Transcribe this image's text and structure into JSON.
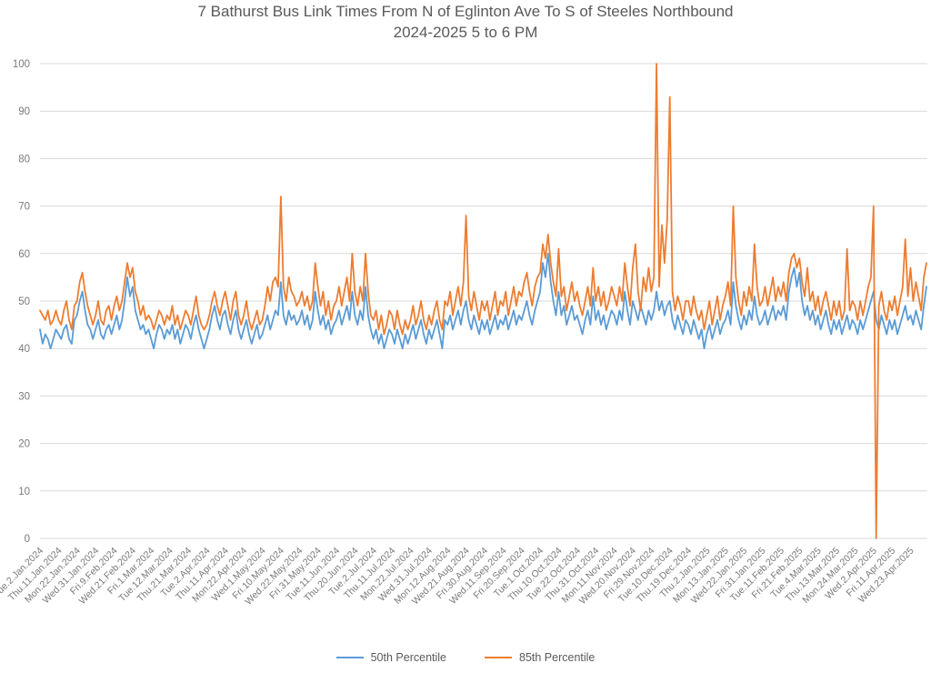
{
  "title": {
    "line1": "7 Bathurst Bus Link Times From N of Eglinton Ave To S of Steeles Northbound",
    "line2": "2024-2025 5 to 6 PM"
  },
  "chart_data": {
    "type": "line",
    "title": "7 Bathurst Bus Link Times From N of Eglinton Ave To S of Steeles Northbound 2024-2025 5 to 6 PM",
    "xlabel": "",
    "ylabel": "",
    "ylim": [
      0,
      100
    ],
    "y_ticks": [
      0,
      10,
      20,
      30,
      40,
      50,
      60,
      70,
      80,
      90,
      100
    ],
    "grid": "horizontal",
    "gridline_color": "#d9d9d9",
    "tick_label_color": "#7a7a7a",
    "legend_position": "bottom",
    "points_per_tick": 7,
    "x_tick_labels": [
      "Tue.2.Jan.2024",
      "Thu.11.Jan.2024",
      "Mon.22.Jan.2024",
      "Wed.31.Jan.2024",
      "Fri.9.Feb.2024",
      "Wed.21.Feb.2024",
      "Fri.1.Mar.2024",
      "Tue.12.Mar.2024",
      "Thu.21.Mar.2024",
      "Tue.2.Apr.2024",
      "Thu.11.Apr.2024",
      "Mon.22.Apr.2024",
      "Wed.1.May.2024",
      "Fri.10.May.2024",
      "Wed.22.May.2024",
      "Fri.31.May.2024",
      "Tue.11.Jun.2024",
      "Thu.20.Jun.2024",
      "Tue.2.Jul.2024",
      "Thu.11.Jul.2024",
      "Mon.22.Jul.2024",
      "Wed.31.Jul.2024",
      "Mon.12.Aug.2024",
      "Wed.21.Aug.2024",
      "Fri.30.Aug.2024",
      "Wed.11.Sep.2024",
      "Fri.20.Sep.2024",
      "Tue.1.Oct.2024",
      "Thu.10.Oct.2024",
      "Tue.22.Oct.2024",
      "Thu.31.Oct.2024",
      "Mon.11.Nov.2024",
      "Wed.20.Nov.2024",
      "Fri.29.Nov.2024",
      "Tue.10.Dec.2024",
      "Thu.19.Dec.2024",
      "Thu.2.Jan.2025",
      "Mon.13.Jan.2025",
      "Wed.22.Jan.2025",
      "Fri.31.Jan.2025",
      "Tue.11.Feb.2025",
      "Fri.21.Feb.2025",
      "Tue.4.Mar.2025",
      "Thu.13.Mar.2025",
      "Mon.24.Mar.2025",
      "Wed.2.Apr.2025",
      "Fri.11.Apr.2025",
      "Wed.23.Apr.2025"
    ],
    "series": [
      {
        "name": "50th Percentile",
        "color": "#5B9BD5",
        "values": [
          44,
          41,
          43,
          42,
          40,
          42,
          44,
          43,
          42,
          44,
          45,
          42,
          41,
          46,
          47,
          50,
          52,
          48,
          45,
          44,
          42,
          44,
          46,
          43,
          42,
          44,
          45,
          43,
          45,
          47,
          44,
          46,
          50,
          55,
          51,
          53,
          48,
          46,
          44,
          45,
          43,
          44,
          42,
          40,
          43,
          45,
          44,
          42,
          44,
          43,
          45,
          42,
          44,
          41,
          43,
          45,
          44,
          42,
          45,
          47,
          44,
          42,
          40,
          42,
          44,
          47,
          49,
          46,
          44,
          47,
          48,
          45,
          43,
          46,
          48,
          44,
          42,
          44,
          46,
          43,
          41,
          43,
          45,
          42,
          43,
          45,
          47,
          44,
          46,
          48,
          47,
          54,
          47,
          45,
          48,
          46,
          47,
          45,
          46,
          48,
          45,
          47,
          44,
          46,
          52,
          48,
          45,
          47,
          44,
          46,
          43,
          45,
          46,
          48,
          45,
          47,
          49,
          46,
          52,
          47,
          45,
          48,
          46,
          53,
          47,
          44,
          42,
          44,
          41,
          43,
          40,
          42,
          44,
          43,
          41,
          44,
          42,
          40,
          43,
          41,
          43,
          45,
          42,
          44,
          46,
          43,
          41,
          44,
          42,
          44,
          46,
          43,
          40,
          46,
          45,
          47,
          44,
          46,
          48,
          45,
          48,
          50,
          46,
          44,
          47,
          45,
          43,
          46,
          44,
          46,
          43,
          45,
          47,
          44,
          46,
          45,
          47,
          44,
          46,
          48,
          45,
          47,
          46,
          48,
          50,
          47,
          45,
          48,
          50,
          52,
          58,
          55,
          60,
          54,
          50,
          47,
          52,
          47,
          49,
          45,
          47,
          49,
          46,
          47,
          45,
          43,
          46,
          48,
          45,
          51,
          46,
          48,
          45,
          47,
          44,
          46,
          48,
          47,
          45,
          48,
          46,
          52,
          48,
          45,
          50,
          48,
          46,
          49,
          47,
          45,
          48,
          46,
          48,
          52,
          48,
          50,
          47,
          49,
          50,
          46,
          44,
          47,
          45,
          43,
          46,
          45,
          43,
          46,
          44,
          42,
          44,
          40,
          43,
          45,
          42,
          44,
          46,
          43,
          45,
          46,
          48,
          45,
          54,
          49,
          46,
          44,
          47,
          45,
          48,
          46,
          51,
          47,
          45,
          46,
          48,
          45,
          47,
          49,
          46,
          48,
          47,
          49,
          46,
          52,
          55,
          57,
          53,
          56,
          50,
          47,
          49,
          46,
          48,
          45,
          47,
          44,
          46,
          48,
          45,
          43,
          46,
          44,
          46,
          43,
          45,
          47,
          44,
          46,
          45,
          43,
          46,
          44,
          46,
          48,
          50,
          52,
          46,
          44,
          47,
          45,
          43,
          46,
          44,
          46,
          43,
          45,
          47,
          49,
          46,
          47,
          45,
          48,
          46,
          44,
          49,
          53
        ]
      },
      {
        "name": "85th Percentile",
        "color": "#ED7D31",
        "values": [
          48,
          47,
          46,
          48,
          45,
          46,
          48,
          46,
          45,
          48,
          50,
          46,
          44,
          49,
          50,
          54,
          56,
          52,
          49,
          47,
          45,
          47,
          50,
          46,
          45,
          48,
          49,
          46,
          49,
          51,
          48,
          50,
          54,
          58,
          55,
          57,
          52,
          50,
          47,
          49,
          46,
          47,
          46,
          44,
          46,
          48,
          47,
          45,
          47,
          46,
          49,
          45,
          47,
          44,
          46,
          48,
          47,
          45,
          48,
          51,
          47,
          45,
          44,
          45,
          47,
          50,
          52,
          49,
          47,
          50,
          52,
          49,
          46,
          50,
          52,
          47,
          45,
          47,
          50,
          46,
          44,
          46,
          48,
          45,
          46,
          49,
          53,
          50,
          54,
          55,
          53,
          72,
          53,
          50,
          55,
          52,
          51,
          49,
          50,
          52,
          49,
          51,
          48,
          50,
          58,
          53,
          49,
          52,
          47,
          50,
          46,
          49,
          50,
          53,
          49,
          52,
          55,
          50,
          60,
          52,
          49,
          53,
          50,
          60,
          52,
          47,
          46,
          48,
          44,
          47,
          43,
          45,
          48,
          47,
          44,
          48,
          45,
          43,
          46,
          44,
          46,
          49,
          45,
          47,
          50,
          46,
          44,
          47,
          45,
          48,
          50,
          46,
          44,
          50,
          49,
          52,
          47,
          50,
          53,
          49,
          54,
          68,
          51,
          48,
          52,
          49,
          46,
          50,
          48,
          50,
          46,
          49,
          52,
          47,
          50,
          49,
          52,
          47,
          50,
          53,
          49,
          52,
          51,
          54,
          56,
          52,
          49,
          53,
          55,
          56,
          62,
          59,
          64,
          58,
          54,
          51,
          61,
          51,
          53,
          48,
          51,
          54,
          50,
          52,
          49,
          47,
          50,
          53,
          49,
          57,
          50,
          53,
          49,
          52,
          48,
          50,
          53,
          51,
          49,
          53,
          50,
          58,
          53,
          49,
          57,
          62,
          52,
          48,
          55,
          52,
          57,
          52,
          55,
          100,
          53,
          66,
          58,
          67,
          93,
          52,
          48,
          51,
          49,
          46,
          50,
          50,
          47,
          51,
          48,
          46,
          48,
          44,
          47,
          50,
          45,
          48,
          51,
          46,
          49,
          51,
          54,
          49,
          70,
          55,
          50,
          47,
          52,
          49,
          53,
          50,
          62,
          53,
          49,
          50,
          53,
          49,
          52,
          55,
          50,
          53,
          51,
          54,
          50,
          56,
          59,
          60,
          57,
          59,
          54,
          51,
          57,
          50,
          52,
          48,
          51,
          47,
          50,
          52,
          49,
          46,
          50,
          47,
          50,
          46,
          48,
          61,
          48,
          50,
          49,
          46,
          50,
          47,
          50,
          53,
          55,
          70,
          0,
          49,
          52,
          48,
          46,
          50,
          48,
          51,
          47,
          50,
          53,
          63,
          51,
          57,
          50,
          54,
          51,
          48,
          55,
          58
        ]
      }
    ]
  },
  "legend": {
    "items": [
      {
        "label": "50th Percentile",
        "color": "#5B9BD5"
      },
      {
        "label": "85th Percentile",
        "color": "#ED7D31"
      }
    ]
  },
  "colors": {
    "title_text": "#595959",
    "axis_text": "#7a7a7a",
    "gridline": "#d9d9d9",
    "background": "#ffffff"
  }
}
